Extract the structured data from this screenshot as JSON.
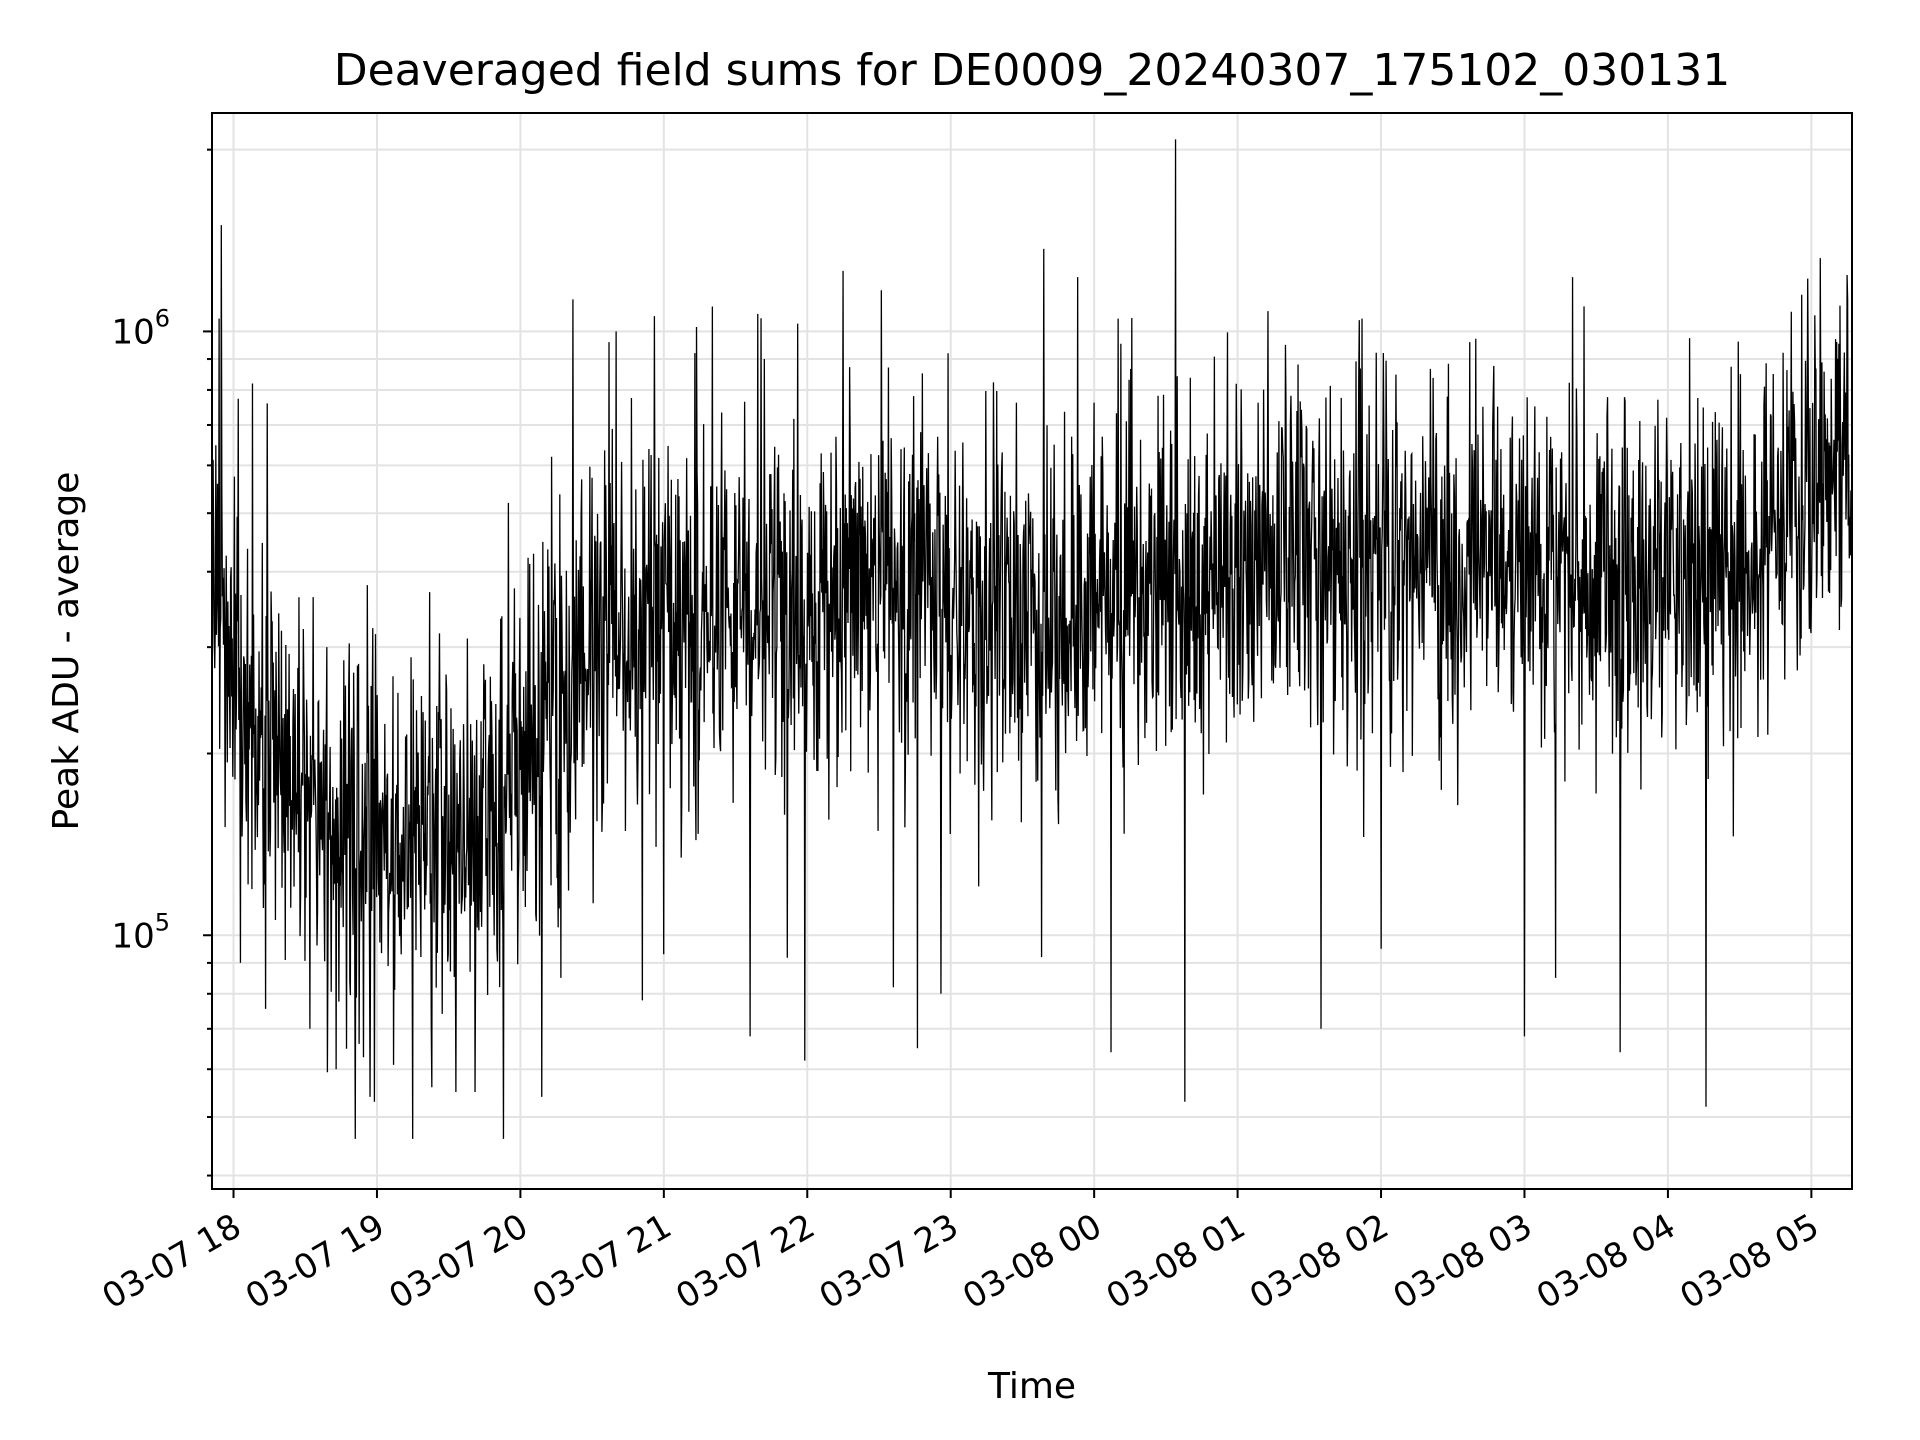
{
  "chart_data": {
    "type": "line",
    "title": "Deaveraged field sums for DE0009_20240307_175102_030131",
    "xlabel": "Time",
    "ylabel": "Peak ADU - average",
    "x_scale": "time",
    "y_scale": "log",
    "xlim": [
      "2024-03-07 17:51",
      "2024-03-08 05:17"
    ],
    "ylim": [
      38000,
      2300000
    ],
    "x_ticks": [
      {
        "label": "03-07 18",
        "t": "2024-03-07 18:00"
      },
      {
        "label": "03-07 19",
        "t": "2024-03-07 19:00"
      },
      {
        "label": "03-07 20",
        "t": "2024-03-07 20:00"
      },
      {
        "label": "03-07 21",
        "t": "2024-03-07 21:00"
      },
      {
        "label": "03-07 22",
        "t": "2024-03-07 22:00"
      },
      {
        "label": "03-07 23",
        "t": "2024-03-07 23:00"
      },
      {
        "label": "03-08 00",
        "t": "2024-03-08 00:00"
      },
      {
        "label": "03-08 01",
        "t": "2024-03-08 01:00"
      },
      {
        "label": "03-08 02",
        "t": "2024-03-08 02:00"
      },
      {
        "label": "03-08 03",
        "t": "2024-03-08 03:00"
      },
      {
        "label": "03-08 04",
        "t": "2024-03-08 04:00"
      },
      {
        "label": "03-08 05",
        "t": "2024-03-08 05:00"
      }
    ],
    "y_ticks": [
      {
        "base": "10",
        "exp": "5",
        "value": 100000
      },
      {
        "base": "10",
        "exp": "6",
        "value": 1000000
      }
    ],
    "grid": true,
    "line_color": "#000000",
    "trend": [
      {
        "t": "2024-03-07 17:51",
        "y": 330000
      },
      {
        "t": "2024-03-07 18:20",
        "y": 190000
      },
      {
        "t": "2024-03-07 18:50",
        "y": 140000
      },
      {
        "t": "2024-03-07 19:20",
        "y": 145000
      },
      {
        "t": "2024-03-07 19:50",
        "y": 170000
      },
      {
        "t": "2024-03-07 20:20",
        "y": 260000
      },
      {
        "t": "2024-03-07 20:45",
        "y": 330000
      },
      {
        "t": "2024-03-07 21:30",
        "y": 340000
      },
      {
        "t": "2024-03-07 22:00",
        "y": 330000
      },
      {
        "t": "2024-03-07 22:30",
        "y": 400000
      },
      {
        "t": "2024-03-07 23:30",
        "y": 320000
      },
      {
        "t": "2024-03-08 00:30",
        "y": 370000
      },
      {
        "t": "2024-03-08 01:30",
        "y": 420000
      },
      {
        "t": "2024-03-08 02:30",
        "y": 420000
      },
      {
        "t": "2024-03-08 03:30",
        "y": 400000
      },
      {
        "t": "2024-03-08 04:15",
        "y": 380000
      },
      {
        "t": "2024-03-08 04:50",
        "y": 480000
      },
      {
        "t": "2024-03-08 05:17",
        "y": 580000
      }
    ],
    "spikes": [
      {
        "t": "2024-03-07 17:55",
        "y": 1500000
      },
      {
        "t": "2024-03-07 17:54",
        "y": 1050000
      },
      {
        "t": "2024-03-07 18:08",
        "y": 820000
      },
      {
        "t": "2024-03-07 18:14",
        "y": 760000
      },
      {
        "t": "2024-03-07 18:39",
        "y": 300000
      },
      {
        "t": "2024-03-07 18:56",
        "y": 380000
      },
      {
        "t": "2024-03-07 19:22",
        "y": 370000
      },
      {
        "t": "2024-03-07 19:55",
        "y": 520000
      },
      {
        "t": "2024-03-07 20:13",
        "y": 620000
      },
      {
        "t": "2024-03-07 20:22",
        "y": 1130000
      },
      {
        "t": "2024-03-07 20:37",
        "y": 960000
      },
      {
        "t": "2024-03-07 20:40",
        "y": 1000000
      },
      {
        "t": "2024-03-07 20:56",
        "y": 1060000
      },
      {
        "t": "2024-03-07 21:42",
        "y": 900000
      },
      {
        "t": "2024-03-07 21:56",
        "y": 1030000
      },
      {
        "t": "2024-03-07 22:15",
        "y": 1260000
      },
      {
        "t": "2024-03-07 22:31",
        "y": 1170000
      },
      {
        "t": "2024-03-07 22:59",
        "y": 920000
      },
      {
        "t": "2024-03-07 23:39",
        "y": 1370000
      },
      {
        "t": "2024-03-07 23:53",
        "y": 1230000
      },
      {
        "t": "2024-03-08 00:10",
        "y": 1050000
      },
      {
        "t": "2024-03-08 00:34",
        "y": 2080000
      },
      {
        "t": "2024-03-08 01:20",
        "y": 950000
      },
      {
        "t": "2024-03-08 01:52",
        "y": 1050000
      },
      {
        "t": "2024-03-08 02:37",
        "y": 960000
      },
      {
        "t": "2024-03-08 03:20",
        "y": 1230000
      },
      {
        "t": "2024-03-08 03:25",
        "y": 1100000
      },
      {
        "t": "2024-03-08 04:16",
        "y": 1120000
      },
      {
        "t": "2024-03-08 04:56",
        "y": 1150000
      },
      {
        "t": "2024-03-08 05:15",
        "y": 1240000
      }
    ],
    "dips": [
      {
        "t": "2024-03-07 18:03",
        "y": 90000
      },
      {
        "t": "2024-03-07 18:32",
        "y": 70000
      },
      {
        "t": "2024-03-07 18:43",
        "y": 60000
      },
      {
        "t": "2024-03-07 18:51",
        "y": 46000
      },
      {
        "t": "2024-03-07 18:57",
        "y": 54000
      },
      {
        "t": "2024-03-07 18:59",
        "y": 53000
      },
      {
        "t": "2024-03-07 19:07",
        "y": 61000
      },
      {
        "t": "2024-03-07 19:15",
        "y": 46000
      },
      {
        "t": "2024-03-07 19:23",
        "y": 56000
      },
      {
        "t": "2024-03-07 19:33",
        "y": 55000
      },
      {
        "t": "2024-03-07 19:41",
        "y": 55000
      },
      {
        "t": "2024-03-07 19:53",
        "y": 46000
      },
      {
        "t": "2024-03-07 20:09",
        "y": 54000
      },
      {
        "t": "2024-03-07 20:17",
        "y": 85000
      },
      {
        "t": "2024-03-07 20:51",
        "y": 78000
      },
      {
        "t": "2024-03-07 21:00",
        "y": 93000
      },
      {
        "t": "2024-03-07 21:36",
        "y": 68000
      },
      {
        "t": "2024-03-07 21:59",
        "y": 62000
      },
      {
        "t": "2024-03-07 22:36",
        "y": 82000
      },
      {
        "t": "2024-03-07 22:46",
        "y": 65000
      },
      {
        "t": "2024-03-07 22:56",
        "y": 80000
      },
      {
        "t": "2024-03-07 23:38",
        "y": 92000
      },
      {
        "t": "2024-03-08 00:07",
        "y": 64000
      },
      {
        "t": "2024-03-08 00:38",
        "y": 53000
      },
      {
        "t": "2024-03-08 01:35",
        "y": 70000
      },
      {
        "t": "2024-03-08 02:00",
        "y": 95000
      },
      {
        "t": "2024-03-08 03:00",
        "y": 68000
      },
      {
        "t": "2024-03-08 03:13",
        "y": 85000
      },
      {
        "t": "2024-03-08 03:40",
        "y": 64000
      },
      {
        "t": "2024-03-08 04:16",
        "y": 52000
      }
    ]
  }
}
